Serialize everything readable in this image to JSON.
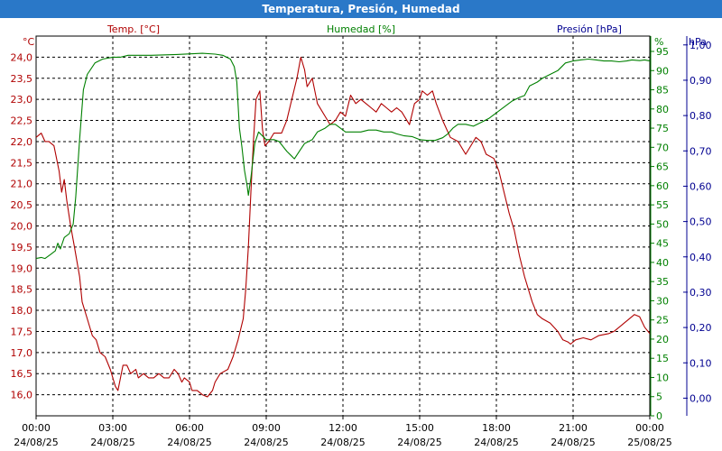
{
  "window": {
    "title": "Temperatura, Presión, Humedad"
  },
  "colors": {
    "temp": "#b00000",
    "hum": "#008000",
    "pres": "#000090",
    "title_bg": "#2a78c8",
    "grid": "#000000"
  },
  "chart_data": {
    "type": "line",
    "title": "Temperatura, Presión, Humedad",
    "grid": true,
    "x": {
      "range_hours": [
        0,
        24
      ],
      "ticks": [
        {
          "h": 0,
          "time": "00:00",
          "date": "24/08/25"
        },
        {
          "h": 3,
          "time": "03:00",
          "date": "24/08/25"
        },
        {
          "h": 6,
          "time": "06:00",
          "date": "24/08/25"
        },
        {
          "h": 9,
          "time": "09:00",
          "date": "24/08/25"
        },
        {
          "h": 12,
          "time": "12:00",
          "date": "24/08/25"
        },
        {
          "h": 15,
          "time": "15:00",
          "date": "24/08/25"
        },
        {
          "h": 18,
          "time": "18:00",
          "date": "24/08/25"
        },
        {
          "h": 21,
          "time": "21:00",
          "date": "24/08/25"
        },
        {
          "h": 24,
          "time": "00:00",
          "date": "25/08/25"
        }
      ]
    },
    "axes": {
      "temp": {
        "unit": "°C",
        "label": "Temp. [°C]",
        "min": 15.5,
        "max": 24.5,
        "ticks": [
          "16,0",
          "16,5",
          "17,0",
          "17,5",
          "18,0",
          "18,5",
          "19,0",
          "19,5",
          "20,0",
          "20,5",
          "21,0",
          "21,5",
          "22,0",
          "22,5",
          "23,0",
          "23,5",
          "24,0"
        ]
      },
      "hum": {
        "unit": "%",
        "label": "Humedad [%]",
        "min": 0,
        "max": 99,
        "ticks": [
          "0",
          "5",
          "10",
          "15",
          "20",
          "25",
          "30",
          "35",
          "40",
          "45",
          "50",
          "55",
          "60",
          "65",
          "70",
          "75",
          "80",
          "85",
          "90",
          "95"
        ]
      },
      "pres": {
        "unit": "hPa",
        "label": "Presión [hPa]",
        "min": -0.05,
        "max": 1.025,
        "ticks": [
          "0,00",
          "0,10",
          "0,20",
          "0,30",
          "0,40",
          "0,50",
          "0,60",
          "0,70",
          "0,80",
          "0,90",
          "1,00"
        ]
      }
    },
    "series": [
      {
        "name": "Temp. [°C]",
        "axis": "temp",
        "points": [
          [
            0,
            22.1
          ],
          [
            0.2,
            22.2
          ],
          [
            0.35,
            22.0
          ],
          [
            0.5,
            22.0
          ],
          [
            0.7,
            21.9
          ],
          [
            0.9,
            21.3
          ],
          [
            1.0,
            20.8
          ],
          [
            1.1,
            21.1
          ],
          [
            1.2,
            20.6
          ],
          [
            1.35,
            20.0
          ],
          [
            1.5,
            19.5
          ],
          [
            1.7,
            18.8
          ],
          [
            1.8,
            18.2
          ],
          [
            2.0,
            17.8
          ],
          [
            2.2,
            17.4
          ],
          [
            2.35,
            17.3
          ],
          [
            2.5,
            17.0
          ],
          [
            2.7,
            16.9
          ],
          [
            2.9,
            16.6
          ],
          [
            3.0,
            16.4
          ],
          [
            3.1,
            16.2
          ],
          [
            3.2,
            16.1
          ],
          [
            3.3,
            16.4
          ],
          [
            3.4,
            16.7
          ],
          [
            3.55,
            16.7
          ],
          [
            3.7,
            16.5
          ],
          [
            3.9,
            16.6
          ],
          [
            4.0,
            16.4
          ],
          [
            4.2,
            16.5
          ],
          [
            4.4,
            16.4
          ],
          [
            4.6,
            16.4
          ],
          [
            4.8,
            16.5
          ],
          [
            5.0,
            16.4
          ],
          [
            5.2,
            16.4
          ],
          [
            5.4,
            16.6
          ],
          [
            5.55,
            16.5
          ],
          [
            5.7,
            16.3
          ],
          [
            5.8,
            16.4
          ],
          [
            6.0,
            16.3
          ],
          [
            6.1,
            16.1
          ],
          [
            6.3,
            16.1
          ],
          [
            6.5,
            16.0
          ],
          [
            6.7,
            15.95
          ],
          [
            6.9,
            16.1
          ],
          [
            7.0,
            16.3
          ],
          [
            7.2,
            16.5
          ],
          [
            7.5,
            16.6
          ],
          [
            7.7,
            16.9
          ],
          [
            7.9,
            17.3
          ],
          [
            8.1,
            17.8
          ],
          [
            8.2,
            18.5
          ],
          [
            8.3,
            19.5
          ],
          [
            8.4,
            20.8
          ],
          [
            8.5,
            22.0
          ],
          [
            8.6,
            23.0
          ],
          [
            8.75,
            23.2
          ],
          [
            8.85,
            22.3
          ],
          [
            8.95,
            21.9
          ],
          [
            9.1,
            22.0
          ],
          [
            9.3,
            22.2
          ],
          [
            9.6,
            22.2
          ],
          [
            9.8,
            22.5
          ],
          [
            10.0,
            23.0
          ],
          [
            10.2,
            23.5
          ],
          [
            10.35,
            24.0
          ],
          [
            10.5,
            23.7
          ],
          [
            10.6,
            23.3
          ],
          [
            10.8,
            23.5
          ],
          [
            11.0,
            22.9
          ],
          [
            11.3,
            22.6
          ],
          [
            11.5,
            22.4
          ],
          [
            11.7,
            22.5
          ],
          [
            11.9,
            22.7
          ],
          [
            12.1,
            22.6
          ],
          [
            12.3,
            23.1
          ],
          [
            12.5,
            22.9
          ],
          [
            12.7,
            23.0
          ],
          [
            12.9,
            22.9
          ],
          [
            13.1,
            22.8
          ],
          [
            13.3,
            22.7
          ],
          [
            13.5,
            22.9
          ],
          [
            13.7,
            22.8
          ],
          [
            13.9,
            22.7
          ],
          [
            14.1,
            22.8
          ],
          [
            14.3,
            22.7
          ],
          [
            14.6,
            22.4
          ],
          [
            14.8,
            22.9
          ],
          [
            15.0,
            23.0
          ],
          [
            15.1,
            23.2
          ],
          [
            15.3,
            23.1
          ],
          [
            15.5,
            23.2
          ],
          [
            15.65,
            22.9
          ],
          [
            15.9,
            22.5
          ],
          [
            16.2,
            22.1
          ],
          [
            16.5,
            22.0
          ],
          [
            16.8,
            21.7
          ],
          [
            17.0,
            21.9
          ],
          [
            17.2,
            22.1
          ],
          [
            17.4,
            22.0
          ],
          [
            17.6,
            21.7
          ],
          [
            17.9,
            21.6
          ],
          [
            18.1,
            21.3
          ],
          [
            18.3,
            20.8
          ],
          [
            18.5,
            20.3
          ],
          [
            18.7,
            19.9
          ],
          [
            18.9,
            19.3
          ],
          [
            19.1,
            18.8
          ],
          [
            19.4,
            18.2
          ],
          [
            19.6,
            17.9
          ],
          [
            19.8,
            17.8
          ],
          [
            20.1,
            17.7
          ],
          [
            20.4,
            17.5
          ],
          [
            20.6,
            17.3
          ],
          [
            20.8,
            17.25
          ],
          [
            20.9,
            17.2
          ],
          [
            21.1,
            17.3
          ],
          [
            21.4,
            17.35
          ],
          [
            21.7,
            17.3
          ],
          [
            22.0,
            17.4
          ],
          [
            22.4,
            17.45
          ],
          [
            22.6,
            17.5
          ],
          [
            22.8,
            17.6
          ],
          [
            23.0,
            17.7
          ],
          [
            23.2,
            17.8
          ],
          [
            23.4,
            17.9
          ],
          [
            23.6,
            17.85
          ],
          [
            23.8,
            17.6
          ],
          [
            24.0,
            17.45
          ]
        ]
      },
      {
        "name": "Humedad [%]",
        "axis": "hum",
        "points": [
          [
            0,
            41
          ],
          [
            0.2,
            41.3
          ],
          [
            0.35,
            41.0
          ],
          [
            0.55,
            42.0
          ],
          [
            0.75,
            43
          ],
          [
            0.85,
            45
          ],
          [
            0.95,
            43.5
          ],
          [
            1.1,
            46.5
          ],
          [
            1.3,
            47.5
          ],
          [
            1.45,
            50
          ],
          [
            1.55,
            57
          ],
          [
            1.7,
            72
          ],
          [
            1.85,
            85
          ],
          [
            2.0,
            89
          ],
          [
            2.3,
            92
          ],
          [
            2.6,
            93
          ],
          [
            3.0,
            93.5
          ],
          [
            3.3,
            93.5
          ],
          [
            3.6,
            94
          ],
          [
            4.5,
            94
          ],
          [
            5.5,
            94.2
          ],
          [
            6.5,
            94.5
          ],
          [
            7.0,
            94.3
          ],
          [
            7.3,
            94
          ],
          [
            7.6,
            93
          ],
          [
            7.75,
            91
          ],
          [
            7.85,
            87
          ],
          [
            7.95,
            75
          ],
          [
            8.05,
            70
          ],
          [
            8.15,
            64
          ],
          [
            8.25,
            60
          ],
          [
            8.3,
            57.5
          ],
          [
            8.4,
            62
          ],
          [
            8.55,
            71
          ],
          [
            8.7,
            74
          ],
          [
            9.0,
            72
          ],
          [
            9.3,
            72
          ],
          [
            9.5,
            71.5
          ],
          [
            9.8,
            69
          ],
          [
            9.95,
            68
          ],
          [
            10.1,
            67
          ],
          [
            10.3,
            69
          ],
          [
            10.5,
            71
          ],
          [
            10.8,
            72
          ],
          [
            11.0,
            74
          ],
          [
            11.3,
            75
          ],
          [
            11.5,
            76
          ],
          [
            11.7,
            76
          ],
          [
            11.9,
            75
          ],
          [
            12.1,
            74
          ],
          [
            12.4,
            74
          ],
          [
            12.7,
            74
          ],
          [
            13.0,
            74.5
          ],
          [
            13.3,
            74.5
          ],
          [
            13.6,
            74
          ],
          [
            13.9,
            74
          ],
          [
            14.1,
            73.5
          ],
          [
            14.4,
            73
          ],
          [
            14.7,
            72.8
          ],
          [
            15.0,
            72
          ],
          [
            15.3,
            71.8
          ],
          [
            15.6,
            71.8
          ],
          [
            15.9,
            72.5
          ],
          [
            16.1,
            73.5
          ],
          [
            16.3,
            75
          ],
          [
            16.5,
            76
          ],
          [
            16.8,
            76
          ],
          [
            17.1,
            75.5
          ],
          [
            17.4,
            76.5
          ],
          [
            17.7,
            77.5
          ],
          [
            18.0,
            79
          ],
          [
            18.3,
            80.5
          ],
          [
            18.6,
            82
          ],
          [
            18.9,
            83
          ],
          [
            19.1,
            83.5
          ],
          [
            19.3,
            86
          ],
          [
            19.6,
            87
          ],
          [
            19.8,
            88
          ],
          [
            20.1,
            89
          ],
          [
            20.4,
            90
          ],
          [
            20.7,
            92
          ],
          [
            21.0,
            92.5
          ],
          [
            21.3,
            92.8
          ],
          [
            21.6,
            93
          ],
          [
            21.9,
            92.8
          ],
          [
            22.2,
            92.5
          ],
          [
            22.5,
            92.5
          ],
          [
            22.8,
            92.3
          ],
          [
            23.1,
            92.5
          ],
          [
            23.3,
            92.8
          ],
          [
            23.6,
            92.6
          ],
          [
            23.8,
            92.8
          ],
          [
            24.0,
            92.5
          ]
        ]
      }
    ]
  }
}
